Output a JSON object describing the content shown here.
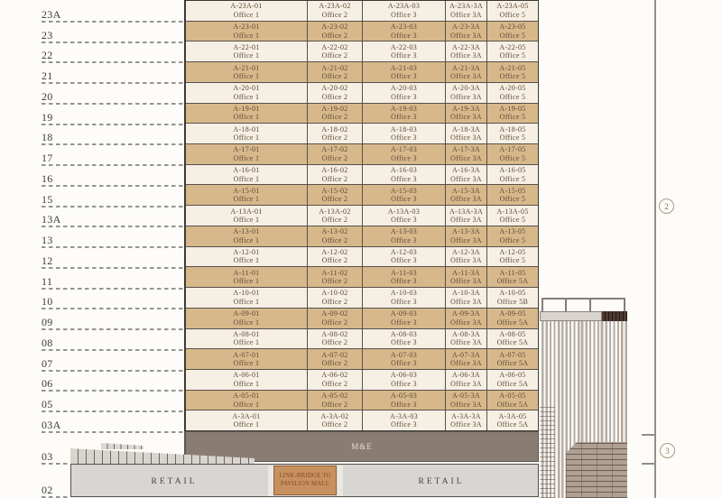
{
  "diagram": {
    "me_label": "M&E",
    "retail_left_label": "RETAIL",
    "retail_right_label": "RETAIL",
    "link_bridge_line1": "LINK-BRIDGE TO",
    "link_bridge_line2": "PAVILION MALL",
    "marker_upper": "2",
    "marker_lower": "3",
    "axis_levels": [
      "23A",
      "23",
      "22",
      "21",
      "20",
      "19",
      "18",
      "17",
      "16",
      "15",
      "13A",
      "13",
      "12",
      "11",
      "10",
      "09",
      "08",
      "07",
      "06",
      "05",
      "03A",
      "03",
      "02"
    ],
    "colors": {
      "row_cream": "#f6efe4",
      "row_tan": "#d7b88b",
      "me_band": "#897c73",
      "retail": "#d8d5d2",
      "link_bridge": "#c7915f",
      "cell_text": "#5b4936"
    },
    "floors": [
      {
        "level": "23A",
        "units": [
          {
            "code": "A-23A-01",
            "office": "Office 1"
          },
          {
            "code": "A-23A-02",
            "office": "Office 2"
          },
          {
            "code": "A-23A-03",
            "office": "Office 3"
          },
          {
            "code": "A-23A-3A",
            "office": "Office 3A"
          },
          {
            "code": "A-23A-05",
            "office": "Office 5"
          }
        ]
      },
      {
        "level": "23",
        "units": [
          {
            "code": "A-23-01",
            "office": "Office 1"
          },
          {
            "code": "A-23-02",
            "office": "Office 2"
          },
          {
            "code": "A-23-03",
            "office": "Office 3"
          },
          {
            "code": "A-23-3A",
            "office": "Office 3A"
          },
          {
            "code": "A-23-05",
            "office": "Office 5"
          }
        ]
      },
      {
        "level": "22",
        "units": [
          {
            "code": "A-22-01",
            "office": "Office 1"
          },
          {
            "code": "A-22-02",
            "office": "Office 2"
          },
          {
            "code": "A-22-03",
            "office": "Office 3"
          },
          {
            "code": "A-22-3A",
            "office": "Office 3A"
          },
          {
            "code": "A-22-05",
            "office": "Office 5"
          }
        ]
      },
      {
        "level": "21",
        "units": [
          {
            "code": "A-21-01",
            "office": "Office 1"
          },
          {
            "code": "A-21-02",
            "office": "Office 2"
          },
          {
            "code": "A-21-03",
            "office": "Office 3"
          },
          {
            "code": "A-21-3A",
            "office": "Office 3A"
          },
          {
            "code": "A-21-05",
            "office": "Office 5"
          }
        ]
      },
      {
        "level": "20",
        "units": [
          {
            "code": "A-20-01",
            "office": "Office 1"
          },
          {
            "code": "A-20-02",
            "office": "Office 2"
          },
          {
            "code": "A-20-03",
            "office": "Office 3"
          },
          {
            "code": "A-20-3A",
            "office": "Office 3A"
          },
          {
            "code": "A-20-05",
            "office": "Office 5"
          }
        ]
      },
      {
        "level": "19",
        "units": [
          {
            "code": "A-19-01",
            "office": "Office 1"
          },
          {
            "code": "A-19-02",
            "office": "Office 2"
          },
          {
            "code": "A-19-03",
            "office": "Office 3"
          },
          {
            "code": "A-19-3A",
            "office": "Office 3A"
          },
          {
            "code": "A-19-05",
            "office": "Office 5"
          }
        ]
      },
      {
        "level": "18",
        "units": [
          {
            "code": "A-18-01",
            "office": "Office 1"
          },
          {
            "code": "A-18-02",
            "office": "Office 2"
          },
          {
            "code": "A-18-03",
            "office": "Office 3"
          },
          {
            "code": "A-18-3A",
            "office": "Office 3A"
          },
          {
            "code": "A-18-05",
            "office": "Office 5"
          }
        ]
      },
      {
        "level": "17",
        "units": [
          {
            "code": "A-17-01",
            "office": "Office 1"
          },
          {
            "code": "A-17-02",
            "office": "Office 2"
          },
          {
            "code": "A-17-03",
            "office": "Office 3"
          },
          {
            "code": "A-17-3A",
            "office": "Office 3A"
          },
          {
            "code": "A-17-05",
            "office": "Office 5"
          }
        ]
      },
      {
        "level": "16",
        "units": [
          {
            "code": "A-16-01",
            "office": "Office 1"
          },
          {
            "code": "A-16-02",
            "office": "Office 2"
          },
          {
            "code": "A-16-03",
            "office": "Office 3"
          },
          {
            "code": "A-16-3A",
            "office": "Office 3A"
          },
          {
            "code": "A-16-05",
            "office": "Office 5"
          }
        ]
      },
      {
        "level": "15",
        "units": [
          {
            "code": "A-15-01",
            "office": "Office 1"
          },
          {
            "code": "A-15-02",
            "office": "Office 2"
          },
          {
            "code": "A-15-03",
            "office": "Office 3"
          },
          {
            "code": "A-15-3A",
            "office": "Office 3A"
          },
          {
            "code": "A-15-05",
            "office": "Office 5"
          }
        ]
      },
      {
        "level": "13A",
        "units": [
          {
            "code": "A-13A-01",
            "office": "Office 1"
          },
          {
            "code": "A-13A-02",
            "office": "Office 2"
          },
          {
            "code": "A-13A-03",
            "office": "Office 3"
          },
          {
            "code": "A-13A-3A",
            "office": "Office 3A"
          },
          {
            "code": "A-13A-05",
            "office": "Office 5"
          }
        ]
      },
      {
        "level": "13",
        "units": [
          {
            "code": "A-13-01",
            "office": "Office 1"
          },
          {
            "code": "A-13-02",
            "office": "Office 2"
          },
          {
            "code": "A-13-03",
            "office": "Office 3"
          },
          {
            "code": "A-13-3A",
            "office": "Office 3A"
          },
          {
            "code": "A-13-05",
            "office": "Office 5"
          }
        ]
      },
      {
        "level": "12",
        "units": [
          {
            "code": "A-12-01",
            "office": "Office 1"
          },
          {
            "code": "A-12-02",
            "office": "Office 2"
          },
          {
            "code": "A-12-03",
            "office": "Office 3"
          },
          {
            "code": "A-12-3A",
            "office": "Office 3A"
          },
          {
            "code": "A-12-05",
            "office": "Office 5"
          }
        ]
      },
      {
        "level": "11",
        "units": [
          {
            "code": "A-11-01",
            "office": "Office 1"
          },
          {
            "code": "A-11-02",
            "office": "Office 2"
          },
          {
            "code": "A-11-03",
            "office": "Office 3"
          },
          {
            "code": "A-11-3A",
            "office": "Office 3A"
          },
          {
            "code": "A-11-05",
            "office": "Office 5A"
          }
        ]
      },
      {
        "level": "10",
        "units": [
          {
            "code": "A-10-01",
            "office": "Office 1"
          },
          {
            "code": "A-10-02",
            "office": "Office 2"
          },
          {
            "code": "A-10-03",
            "office": "Office 3"
          },
          {
            "code": "A-10-3A",
            "office": "Office 3A"
          },
          {
            "code": "A-10-05",
            "office": "Office 5B"
          }
        ]
      },
      {
        "level": "09",
        "units": [
          {
            "code": "A-09-01",
            "office": "Office 1"
          },
          {
            "code": "A-09-02",
            "office": "Office 2"
          },
          {
            "code": "A-09-03",
            "office": "Office 3"
          },
          {
            "code": "A-09-3A",
            "office": "Office 3A"
          },
          {
            "code": "A-09-05",
            "office": "Office 5A"
          }
        ]
      },
      {
        "level": "08",
        "units": [
          {
            "code": "A-08-01",
            "office": "Office 1"
          },
          {
            "code": "A-08-02",
            "office": "Office 2"
          },
          {
            "code": "A-08-03",
            "office": "Office 3"
          },
          {
            "code": "A-08-3A",
            "office": "Office 3A"
          },
          {
            "code": "A-08-05",
            "office": "Office 5A"
          }
        ]
      },
      {
        "level": "07",
        "units": [
          {
            "code": "A-07-01",
            "office": "Office 1"
          },
          {
            "code": "A-07-02",
            "office": "Office 2"
          },
          {
            "code": "A-07-03",
            "office": "Office 3"
          },
          {
            "code": "A-07-3A",
            "office": "Office 3A"
          },
          {
            "code": "A-07-05",
            "office": "Office 5A"
          }
        ]
      },
      {
        "level": "06",
        "units": [
          {
            "code": "A-06-01",
            "office": "Office 1"
          },
          {
            "code": "A-06-02",
            "office": "Office 2"
          },
          {
            "code": "A-06-03",
            "office": "Office 3"
          },
          {
            "code": "A-06-3A",
            "office": "Office 3A"
          },
          {
            "code": "A-06-05",
            "office": "Office 5A"
          }
        ]
      },
      {
        "level": "05",
        "units": [
          {
            "code": "A-05-01",
            "office": "Office 1"
          },
          {
            "code": "A-05-02",
            "office": "Office 2"
          },
          {
            "code": "A-05-03",
            "office": "Office 3"
          },
          {
            "code": "A-05-3A",
            "office": "Office 3A"
          },
          {
            "code": "A-05-05",
            "office": "Office 5A"
          }
        ]
      },
      {
        "level": "03A",
        "units": [
          {
            "code": "A-3A-01",
            "office": "Office 1"
          },
          {
            "code": "A-3A-02",
            "office": "Office 2"
          },
          {
            "code": "A-3A-03",
            "office": "Office 3"
          },
          {
            "code": "A-3A-3A",
            "office": "Office 3A"
          },
          {
            "code": "A-3A-05",
            "office": "Office 5A"
          }
        ]
      }
    ]
  }
}
